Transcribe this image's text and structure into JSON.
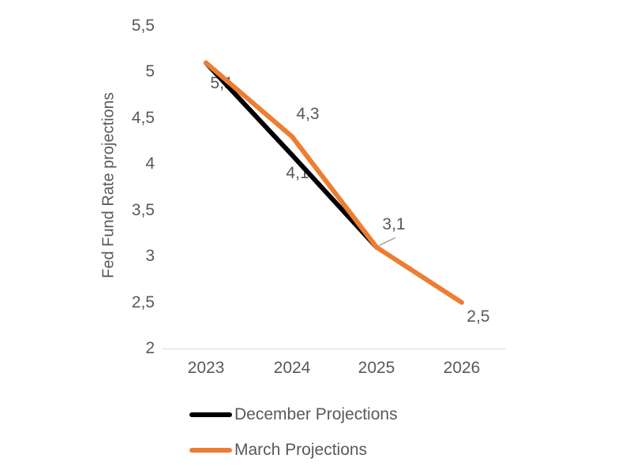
{
  "chart_data": {
    "type": "line",
    "title": "",
    "xlabel": "",
    "ylabel": "Fed Fund Rate projections",
    "categories": [
      "2023",
      "2024",
      "2025",
      "2026"
    ],
    "series": [
      {
        "name": "December Projections",
        "color": "#000000",
        "values": [
          5.1,
          4.1,
          3.1,
          null
        ]
      },
      {
        "name": "March Projections",
        "color": "#ED7D31",
        "values": [
          5.1,
          4.3,
          3.1,
          2.5
        ]
      }
    ],
    "ylim": [
      2,
      5.5
    ],
    "ytick_step": 0.5,
    "yticks": [
      {
        "v": 5.5,
        "label": "5,5"
      },
      {
        "v": 5,
        "label": "5"
      },
      {
        "v": 4.5,
        "label": "4,5"
      },
      {
        "v": 4,
        "label": "4"
      },
      {
        "v": 3.5,
        "label": "3,5"
      },
      {
        "v": 3,
        "label": "3"
      },
      {
        "v": 2.5,
        "label": "2,5"
      },
      {
        "v": 2,
        "label": "2"
      }
    ],
    "grid": false,
    "legend_position": "bottom-left",
    "decimal_separator": ",",
    "annotations": [
      {
        "text": "5,1",
        "category": "2023",
        "value": 5.1
      },
      {
        "text": "4,3",
        "category": "2024",
        "value": 4.3,
        "series": "March Projections"
      },
      {
        "text": "4,1",
        "category": "2024",
        "value": 4.1,
        "series": "December Projections"
      },
      {
        "text": "3,1",
        "category": "2025",
        "value": 3.1,
        "has_leader_line": true
      },
      {
        "text": "2,5",
        "category": "2026",
        "value": 2.5,
        "series": "March Projections"
      }
    ],
    "colors": {
      "axis_line": "#D9D9D9",
      "text": "#595959",
      "leader_line": "#A6A6A6",
      "background": "#FFFFFF"
    }
  }
}
